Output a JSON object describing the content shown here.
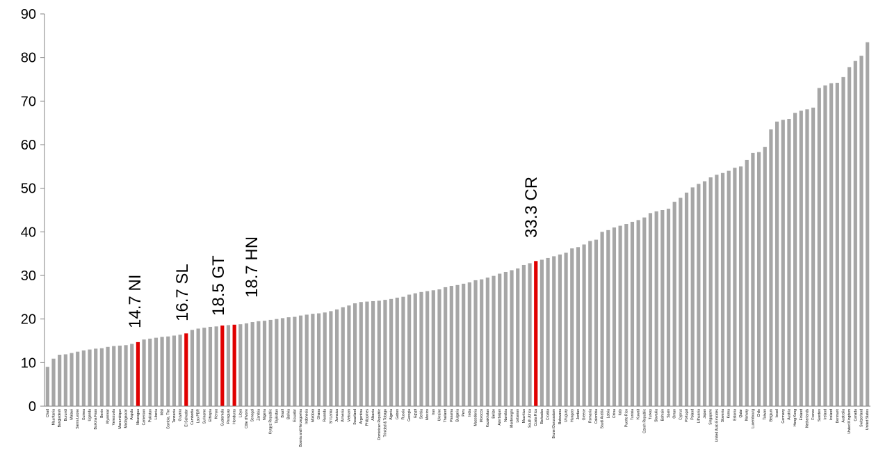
{
  "chart_data": {
    "type": "bar",
    "title": "",
    "xlabel": "",
    "ylabel": "",
    "ylim": [
      0,
      90
    ],
    "yticks": [
      0,
      10,
      20,
      30,
      40,
      50,
      60,
      70,
      80,
      90
    ],
    "grid": false,
    "legend": "none",
    "colors": {
      "default": "#a6a6a6",
      "highlight": "#e00000",
      "axis": "#808080"
    },
    "categories": [
      "Chad",
      "Mauritania",
      "Bangladesh",
      "Burundi",
      "Malawi",
      "Sierra Leone",
      "Guinea",
      "Uganda",
      "Burkina Faso",
      "Benin",
      "Myanmar",
      "Venezuela",
      "Mozambique",
      "Madagascar",
      "Angola",
      "Nicaragua",
      "Cameroon",
      "Pakistan",
      "Liberia",
      "Mali",
      "Gambia, The",
      "Tanzania",
      "Guyana",
      "El Salvador",
      "Cambodia",
      "Lao PDR",
      "Suriname",
      "Ethiopia",
      "Kenya",
      "Guatemala",
      "Paraguay",
      "Honduras",
      "Libya",
      "Côte d'Ivoire",
      "Senegal",
      "Zambia",
      "Nigeria",
      "Kyrgyz Republic",
      "Tajikistan",
      "Brazil",
      "Bolivia",
      "Ecuador",
      "Bosnia and Herzegovina",
      "Indonesia",
      "Moldova",
      "Ghana",
      "Rwanda",
      "Sri Lanka",
      "Jamaica",
      "Armenia",
      "Vietnam",
      "Swaziland",
      "Argentina",
      "Philippines",
      "Albania",
      "Dominican Republic",
      "Trinidad & Tobago",
      "Algeria",
      "Gabon",
      "Russia",
      "Georgia",
      "Egypt",
      "Serbia",
      "Mexico",
      "Iran",
      "Ukraine",
      "Thailand",
      "Panama",
      "Bulgaria",
      "Peru",
      "India",
      "Macedonia",
      "Morocco",
      "Kazakhstan",
      "Belize",
      "Azerbaijan",
      "Namibia",
      "Montenegro",
      "Lebanon",
      "Mauritius",
      "South Africa",
      "Costa Rica",
      "Barbados",
      "Croatia",
      "Brunei Darussalam",
      "Botswana",
      "Uruguay",
      "Hungary",
      "Jordan",
      "Greece",
      "Romania",
      "Colombia",
      "Saudi Arabia",
      "Latvia",
      "China",
      "Italy",
      "Puerto Rico",
      "Tunisia",
      "Kuwait",
      "Czech Republic",
      "Turkey",
      "Slovakia",
      "Bahrain",
      "Spain",
      "Oman",
      "Cyprus",
      "Portugal",
      "Poland",
      "Lithuania",
      "Japan",
      "Singapore",
      "United Arab Emirates",
      "Slovenia",
      "Korea",
      "Estonia",
      "Qatar",
      "Norway",
      "Luxembourg",
      "Chile",
      "Taiwan",
      "Belgium",
      "Israel",
      "Germany",
      "Austria",
      "Hong Kong",
      "Finland",
      "Netherlands",
      "France",
      "Sweden",
      "Ireland",
      "Iceland",
      "Denmark",
      "Australia",
      "United Kingdom",
      "Canada",
      "Switzerland",
      "United States"
    ],
    "values": [
      9.0,
      10.9,
      11.8,
      11.9,
      12.2,
      12.5,
      12.8,
      13.0,
      13.2,
      13.3,
      13.6,
      13.8,
      13.9,
      14.0,
      14.3,
      14.7,
      15.3,
      15.5,
      15.7,
      15.9,
      16.0,
      16.2,
      16.4,
      16.7,
      17.5,
      17.8,
      18.0,
      18.2,
      18.3,
      18.5,
      18.6,
      18.7,
      18.8,
      19.0,
      19.3,
      19.5,
      19.6,
      19.8,
      20.0,
      20.2,
      20.4,
      20.5,
      20.8,
      21.0,
      21.2,
      21.3,
      21.5,
      21.8,
      22.2,
      22.7,
      23.1,
      23.6,
      23.9,
      24.0,
      24.1,
      24.2,
      24.4,
      24.6,
      24.9,
      25.1,
      25.6,
      25.9,
      26.2,
      26.4,
      26.6,
      26.8,
      27.3,
      27.6,
      27.8,
      28.1,
      28.4,
      28.9,
      29.1,
      29.5,
      29.9,
      30.4,
      30.8,
      31.2,
      31.6,
      32.4,
      32.8,
      33.3,
      33.6,
      34.0,
      34.4,
      34.8,
      35.2,
      36.2,
      36.5,
      37.1,
      37.9,
      38.2,
      40.0,
      40.4,
      41.0,
      41.4,
      41.8,
      42.3,
      42.7,
      43.3,
      44.3,
      44.7,
      45.0,
      45.3,
      46.9,
      47.8,
      49.0,
      50.2,
      51.0,
      51.6,
      52.5,
      53.1,
      53.5,
      54.0,
      54.7,
      55.0,
      56.5,
      58.1,
      58.3,
      59.5,
      63.5,
      65.3,
      65.7,
      65.9,
      67.3,
      67.8,
      68.1,
      68.5,
      73.0,
      73.6,
      74.1,
      74.2,
      75.5,
      77.8,
      79.2,
      80.4,
      83.5
    ],
    "highlight": [
      15,
      23,
      29,
      31,
      81
    ],
    "annotations": [
      {
        "text": "14.7 NI",
        "index": 15
      },
      {
        "text": "16.7 SL",
        "index": 23
      },
      {
        "text": "18.5 GT",
        "index": 29
      },
      {
        "text": "18.7 HN",
        "index": 31
      },
      {
        "text": "33.3 CR",
        "index": 81
      }
    ]
  }
}
